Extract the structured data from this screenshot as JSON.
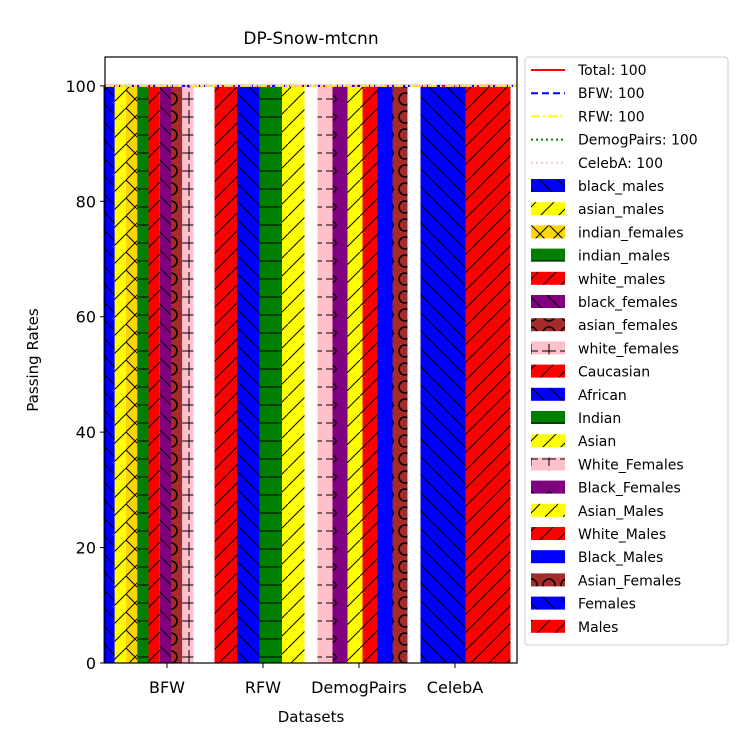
{
  "chart_data": {
    "type": "bar",
    "title": "DP-Snow-mtcnn",
    "xlabel": "Datasets",
    "ylabel": "Passing Rates",
    "ylim": [
      0,
      105
    ],
    "yticks": [
      0,
      20,
      40,
      60,
      80,
      100
    ],
    "categories": [
      "BFW",
      "RFW",
      "DemogPairs",
      "CelebA"
    ],
    "groups": [
      {
        "dataset": "BFW",
        "bars": [
          {
            "name": "black_males",
            "value": 100,
            "color": "#0000ff",
            "hatch": "backslash"
          },
          {
            "name": "asian_males",
            "value": 100,
            "color": "#ffff00",
            "hatch": "slash"
          },
          {
            "name": "indian_females",
            "value": 100,
            "color": "#ffd700",
            "hatch": "cross"
          },
          {
            "name": "indian_males",
            "value": 100,
            "color": "#008000",
            "hatch": "hline"
          },
          {
            "name": "white_males",
            "value": 100,
            "color": "#ff0000",
            "hatch": "slash"
          },
          {
            "name": "black_females",
            "value": 100,
            "color": "#800080",
            "hatch": "backslash"
          },
          {
            "name": "asian_females",
            "value": 100,
            "color": "#a52a2a",
            "hatch": "circle"
          },
          {
            "name": "white_females",
            "value": 100,
            "color": "#ffc0cb",
            "hatch": "plus"
          }
        ]
      },
      {
        "dataset": "RFW",
        "bars": [
          {
            "name": "Caucasian",
            "value": 100,
            "color": "#ff0000",
            "hatch": "slash"
          },
          {
            "name": "African",
            "value": 100,
            "color": "#0000ff",
            "hatch": "backslash"
          },
          {
            "name": "Indian",
            "value": 100,
            "color": "#008000",
            "hatch": "hline"
          },
          {
            "name": "Asian",
            "value": 100,
            "color": "#ffff00",
            "hatch": "slash"
          }
        ]
      },
      {
        "dataset": "DemogPairs",
        "bars": [
          {
            "name": "White_Females",
            "value": 100,
            "color": "#ffc0cb",
            "hatch": "plus"
          },
          {
            "name": "Black_Females",
            "value": 100,
            "color": "#800080",
            "hatch": "dot"
          },
          {
            "name": "Asian_Males",
            "value": 100,
            "color": "#ffff00",
            "hatch": "slash"
          },
          {
            "name": "White_Males",
            "value": 100,
            "color": "#ff0000",
            "hatch": "slash"
          },
          {
            "name": "Black_Males",
            "value": 100,
            "color": "#0000ff",
            "hatch": "none"
          },
          {
            "name": "Asian_Females",
            "value": 100,
            "color": "#a52a2a",
            "hatch": "circle"
          }
        ]
      },
      {
        "dataset": "CelebA",
        "bars": [
          {
            "name": "Females",
            "value": 100,
            "color": "#0000ff",
            "hatch": "backslash"
          },
          {
            "name": "Males",
            "value": 100,
            "color": "#ff0000",
            "hatch": "slash"
          }
        ]
      }
    ],
    "reference_lines": [
      {
        "label": "Total: 100",
        "value": 100,
        "color": "#ff0000",
        "style": "solid"
      },
      {
        "label": "BFW: 100",
        "value": 100,
        "color": "#0000ff",
        "style": "dashed"
      },
      {
        "label": "RFW: 100",
        "value": 100,
        "color": "#ffff00",
        "style": "dashdot"
      },
      {
        "label": "DemogPairs: 100",
        "value": 100,
        "color": "#008000",
        "style": "dotted"
      },
      {
        "label": "CelebA: 100",
        "value": 100,
        "color": "#ffc0cb",
        "style": "dotted"
      }
    ],
    "legend_position": "outside-right",
    "grid": false
  }
}
